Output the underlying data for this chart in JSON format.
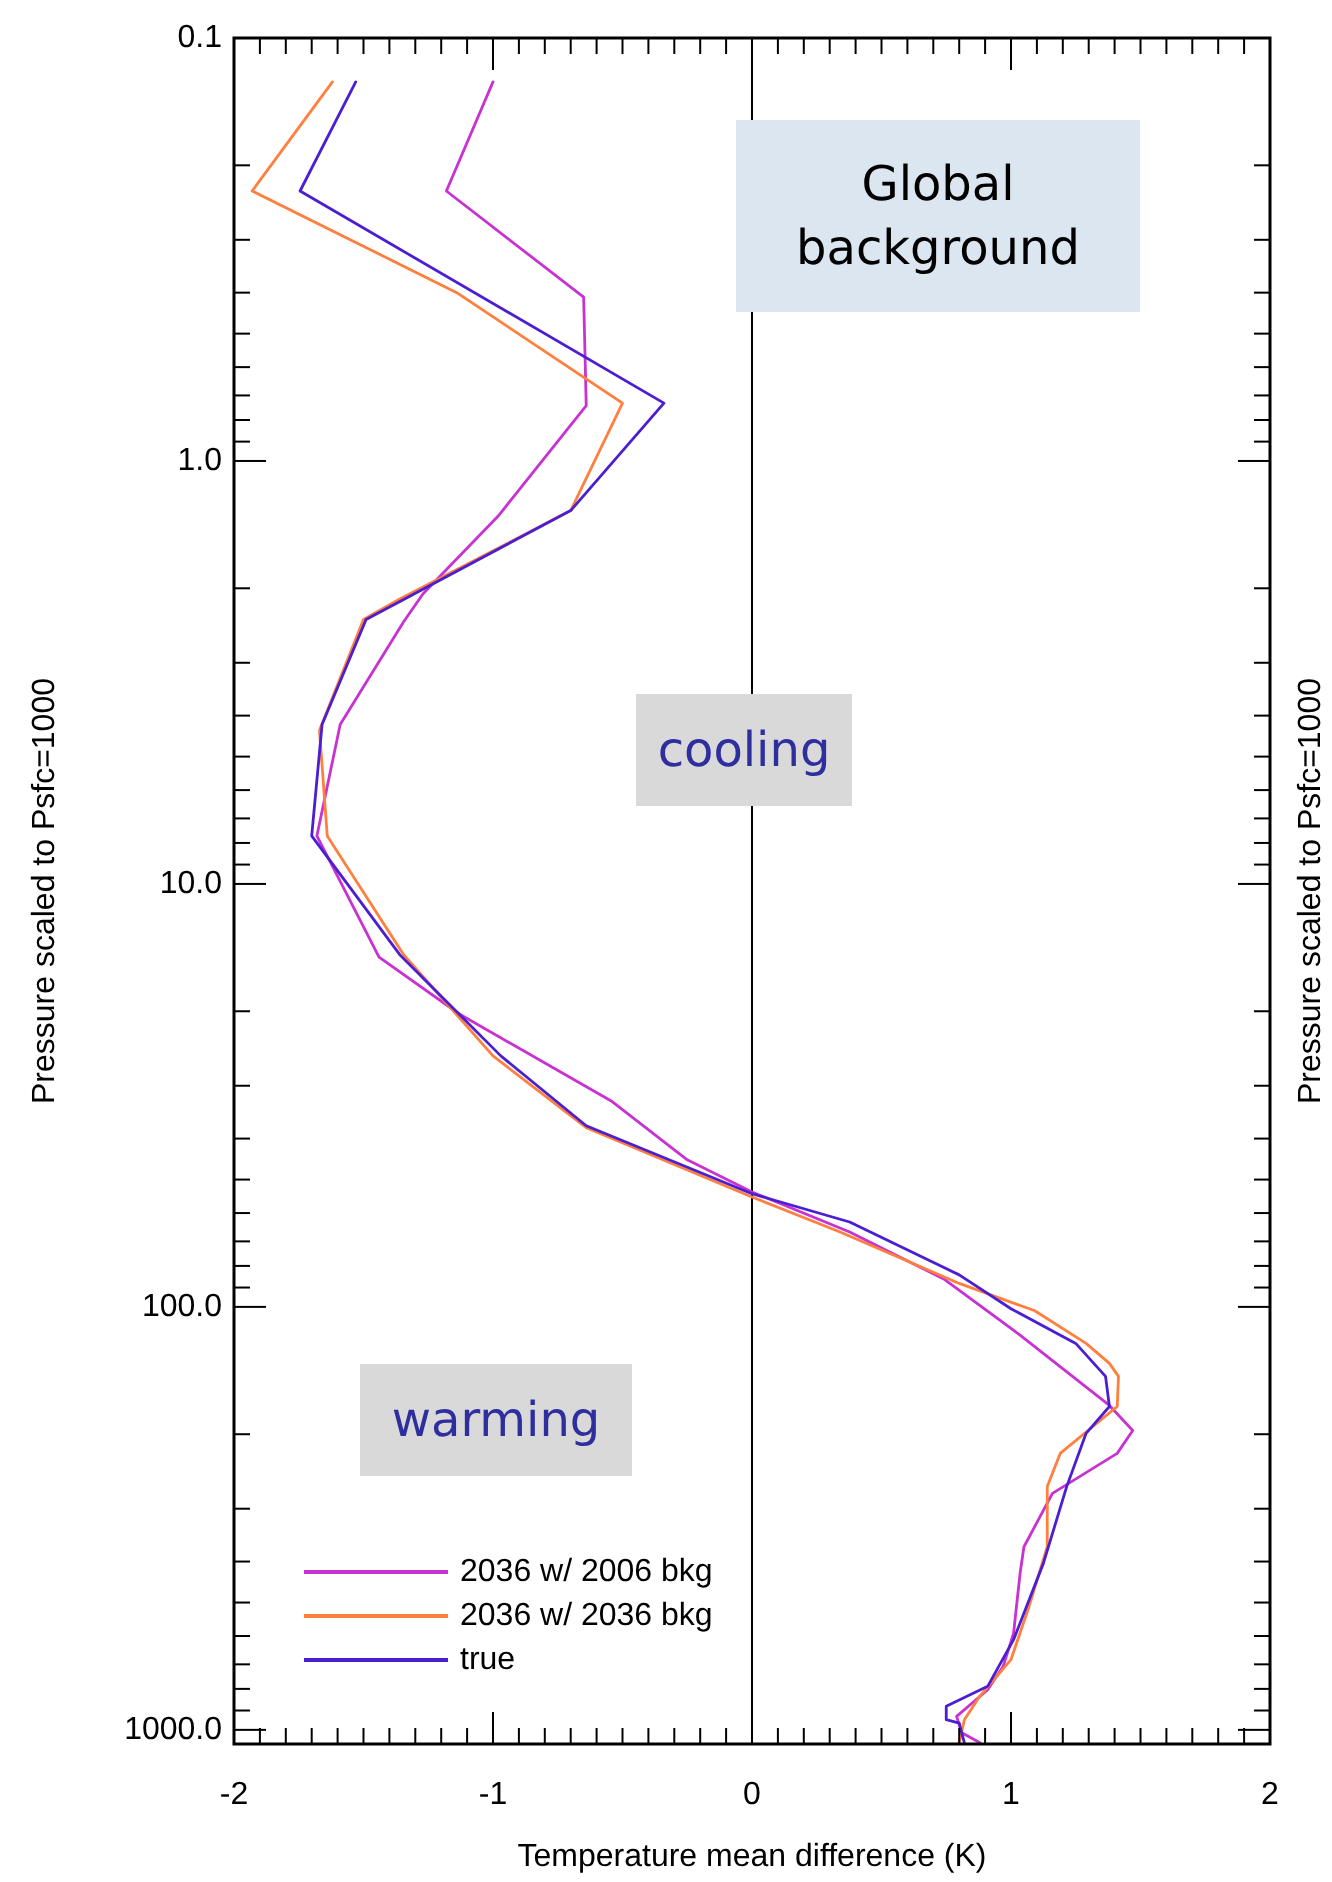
{
  "chart_data": {
    "type": "line",
    "xlabel": "Temperature mean difference (K)",
    "ylabel": "Pressure scaled to Psfc=1000",
    "y2label": "Pressure scaled to Psfc=1000",
    "annotations": [
      "Global background",
      "cooling",
      "warming"
    ],
    "xlim": [
      -2,
      2
    ],
    "xticks": [
      -2,
      {
        "value": -1.9,
        "label": null
      },
      {
        "value": -1.8,
        "label": null
      },
      {
        "value": -1.7,
        "label": null
      },
      {
        "value": -1.6,
        "label": null
      },
      {
        "value": -1.5,
        "label": null
      },
      {
        "value": -1.4,
        "label": null
      },
      {
        "value": -1.3,
        "label": null
      },
      {
        "value": -1.2,
        "label": null
      },
      {
        "value": -1.1,
        "label": null
      },
      -1,
      {
        "value": -0.9,
        "label": null
      },
      {
        "value": -0.8,
        "label": null
      },
      {
        "value": -0.7,
        "label": null
      },
      {
        "value": -0.6,
        "label": null
      },
      {
        "value": -0.5,
        "label": null
      },
      {
        "value": -0.4,
        "label": null
      },
      {
        "value": -0.3,
        "label": null
      },
      {
        "value": -0.2,
        "label": null
      },
      {
        "value": -0.1,
        "label": null
      },
      0,
      {
        "value": 0.1,
        "label": null
      },
      {
        "value": 0.2,
        "label": null
      },
      {
        "value": 0.3,
        "label": null
      },
      {
        "value": 0.4,
        "label": null
      },
      {
        "value": 0.5,
        "label": null
      },
      {
        "value": 0.6,
        "label": null
      },
      {
        "value": 0.7,
        "label": null
      },
      {
        "value": 0.8,
        "label": null
      },
      {
        "value": 0.9,
        "label": null
      },
      1,
      {
        "value": 1.1,
        "label": null
      },
      {
        "value": 1.2,
        "label": null
      },
      {
        "value": 1.3,
        "label": null
      },
      {
        "value": 1.4,
        "label": null
      },
      {
        "value": 1.5,
        "label": null
      },
      {
        "value": 1.6,
        "label": null
      },
      {
        "value": 1.7,
        "label": null
      },
      {
        "value": 1.8,
        "label": null
      },
      {
        "value": 1.9,
        "label": null
      },
      2
    ],
    "ylim": [
      1080,
      0.1
    ],
    "log": "y",
    "yticks": [
      0.1,
      {
        "value": 0.2,
        "label": null
      },
      {
        "value": 0.3,
        "label": null
      },
      {
        "value": 0.4,
        "label": null
      },
      {
        "value": 0.5,
        "label": null
      },
      {
        "value": 0.6,
        "label": null
      },
      {
        "value": 0.7,
        "label": null
      },
      {
        "value": 0.8,
        "label": null
      },
      {
        "value": 0.9,
        "label": null
      },
      {
        "value": 1,
        "label": "1.0"
      },
      {
        "value": 2,
        "label": null
      },
      {
        "value": 3,
        "label": null
      },
      {
        "value": 4,
        "label": null
      },
      {
        "value": 5,
        "label": null
      },
      {
        "value": 6,
        "label": null
      },
      {
        "value": 7,
        "label": null
      },
      {
        "value": 8,
        "label": null
      },
      {
        "value": 9,
        "label": null
      },
      {
        "value": 10,
        "label": "10.0"
      },
      {
        "value": 20,
        "label": null
      },
      {
        "value": 30,
        "label": null
      },
      {
        "value": 40,
        "label": null
      },
      {
        "value": 50,
        "label": null
      },
      {
        "value": 60,
        "label": null
      },
      {
        "value": 70,
        "label": null
      },
      {
        "value": 80,
        "label": null
      },
      {
        "value": 90,
        "label": null
      },
      {
        "value": 100,
        "label": "100.0"
      },
      {
        "value": 200,
        "label": null
      },
      {
        "value": 300,
        "label": null
      },
      {
        "value": 400,
        "label": null
      },
      {
        "value": 500,
        "label": null
      },
      {
        "value": 600,
        "label": null
      },
      {
        "value": 700,
        "label": null
      },
      {
        "value": 800,
        "label": null
      },
      {
        "value": 900,
        "label": null
      },
      {
        "value": 1000,
        "label": "1000.0"
      }
    ],
    "ref_lines": [
      {
        "axis": "x",
        "value": 0,
        "color": "#000000"
      }
    ],
    "legend": "bottom left",
    "grid": false,
    "marker": "none",
    "line_style": "solid",
    "series": [
      {
        "name": "2036 w/ 2006 bkg",
        "color": "#c832d2",
        "x": [
          -1.0,
          -1.18,
          -0.65,
          -0.64,
          -0.98,
          -1.27,
          -1.345,
          -1.59,
          -1.68,
          -1.44,
          -1.13,
          -0.54,
          -0.25,
          0.0,
          0.377,
          0.74,
          1.03,
          1.38,
          1.47,
          1.41,
          1.16,
          1.05,
          1.035,
          1.01,
          0.97,
          0.91,
          0.79,
          0.81,
          0.88
        ],
        "values": [
          0.127,
          0.23,
          0.41,
          0.74,
          1.35,
          2.06,
          2.4,
          4.2,
          7.7,
          14.9,
          20.3,
          32.7,
          44.9,
          53.5,
          66.5,
          85.9,
          116,
          171,
          196,
          222,
          276,
          369,
          427,
          591,
          707,
          804,
          929,
          1016,
          1073
        ]
      },
      {
        "name": "2036 w/ 2036 bkg",
        "color": "#ff7f3f",
        "x": [
          -1.62,
          -1.93,
          -1.14,
          -0.5,
          -0.7,
          -1.36,
          -1.5,
          -1.67,
          -1.64,
          -1.345,
          -1.0,
          -0.64,
          0.0,
          0.34,
          0.8,
          1.09,
          1.29,
          1.38,
          1.415,
          1.41,
          1.19,
          1.14,
          1.14,
          1.07,
          1.0,
          0.88,
          0.82,
          0.8
        ],
        "values": [
          0.127,
          0.23,
          0.4,
          0.73,
          1.31,
          2.12,
          2.37,
          4.33,
          7.7,
          14.7,
          25.5,
          37.7,
          55,
          66.5,
          88,
          102,
          122,
          136,
          146,
          172,
          222,
          266,
          369,
          510,
          682,
          832,
          946,
          1073
        ]
      },
      {
        "name": "true",
        "color": "#4b1ed2",
        "x": [
          -1.53,
          -1.745,
          -0.34,
          -0.7,
          -1.49,
          -1.66,
          -1.7,
          -1.36,
          -0.97,
          -0.64,
          0.0,
          0.377,
          0.8,
          1.0,
          1.25,
          1.365,
          1.38,
          1.29,
          1.215,
          1.125,
          1.01,
          0.91,
          0.75,
          0.75,
          0.8,
          0.82
        ],
        "values": [
          0.127,
          0.23,
          0.73,
          1.31,
          2.37,
          4.2,
          7.7,
          14.7,
          25.5,
          37.3,
          54,
          63,
          84,
          101,
          122,
          146,
          172,
          199,
          266,
          404,
          612,
          789,
          879,
          946,
          964,
          1073
        ]
      }
    ]
  }
}
